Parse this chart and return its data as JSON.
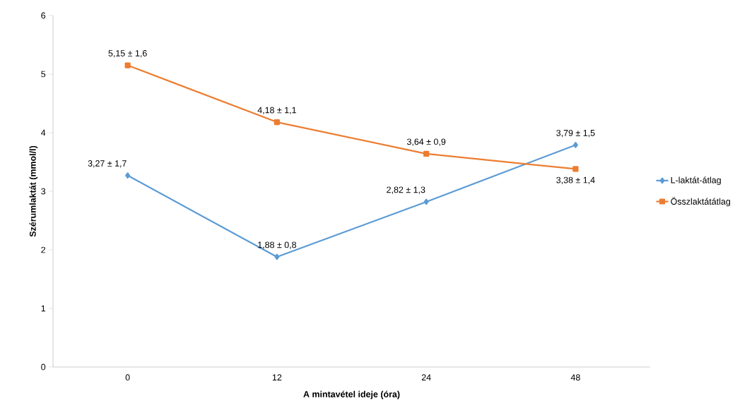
{
  "chart_data": {
    "type": "line",
    "xlabel": "A mintavétel ideje (óra)",
    "ylabel": "Szérumlaktát (mmol/l)",
    "categories": [
      "0",
      "12",
      "24",
      "48"
    ],
    "series": [
      {
        "name": "L-laktát-átlag",
        "color": "#5b9bd5",
        "marker": "diamond",
        "values": [
          3.27,
          1.88,
          2.82,
          3.79
        ],
        "value_labels": [
          "3,27 ± 1,7",
          "1,88 ± 0,8",
          "2,82 ± 1,3",
          "3,79 ± 1,5"
        ]
      },
      {
        "name": "Összlaktátátlag",
        "color": "#ed7d31",
        "marker": "square",
        "values": [
          5.15,
          4.18,
          3.64,
          3.38
        ],
        "value_labels": [
          "5,15 ± 1,6",
          "4,18 ± 1,1",
          "3,64 ± 0,9",
          "3,38 ± 1,4"
        ]
      }
    ],
    "ylim": [
      0,
      6
    ],
    "yticks": [
      0,
      1,
      2,
      3,
      4,
      5,
      6
    ],
    "grid": false,
    "legend": "right",
    "line_style": "solid"
  }
}
